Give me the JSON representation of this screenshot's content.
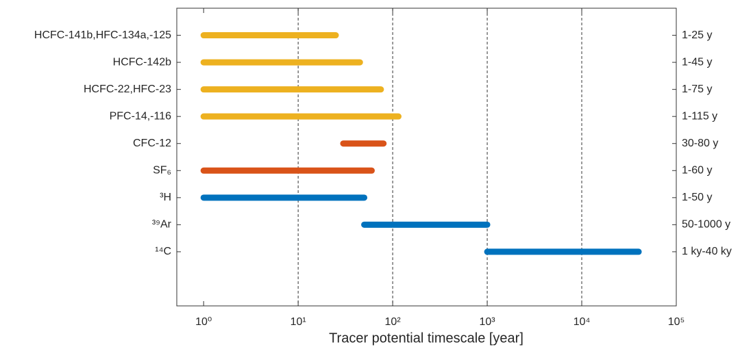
{
  "chart_data": {
    "type": "range_bar",
    "x_label": "Tracer potential timescale [year]",
    "categories": [
      "HCFC-141b,HFC-134a,-125",
      "HCFC-142b",
      "HCFC-22,HFC-23",
      "PFC-14,-116",
      "CFC-12",
      "SF₆",
      "³H",
      "³⁹Ar",
      "¹⁴C"
    ],
    "starts": [
      1,
      1,
      1,
      1,
      30,
      1,
      1,
      50,
      1000
    ],
    "ends": [
      25,
      45,
      75,
      115,
      80,
      60,
      50,
      1000,
      40000
    ],
    "colors": [
      "#EDB120",
      "#EDB120",
      "#EDB120",
      "#EDB120",
      "#D95319",
      "#D95319",
      "#0072BD",
      "#0072BD",
      "#0072BD"
    ],
    "range_labels": [
      "1-25 y",
      "1-45 y",
      "1-75 y",
      "1-115 y",
      "30-80 y",
      "1-60 y",
      "1-50 y",
      "50-1000 y",
      "1 ky-40 ky"
    ],
    "x_scale": "log",
    "xlim": [
      0.52,
      100000
    ],
    "xticks": [
      {
        "value": 1,
        "label": "10⁰"
      },
      {
        "value": 10,
        "label": "10¹"
      },
      {
        "value": 100,
        "label": "10²"
      },
      {
        "value": 1000,
        "label": "10³"
      },
      {
        "value": 10000,
        "label": "10⁴"
      },
      {
        "value": 100000,
        "label": "10⁵"
      }
    ],
    "grid_at": [
      10,
      100,
      1000,
      10000
    ]
  }
}
